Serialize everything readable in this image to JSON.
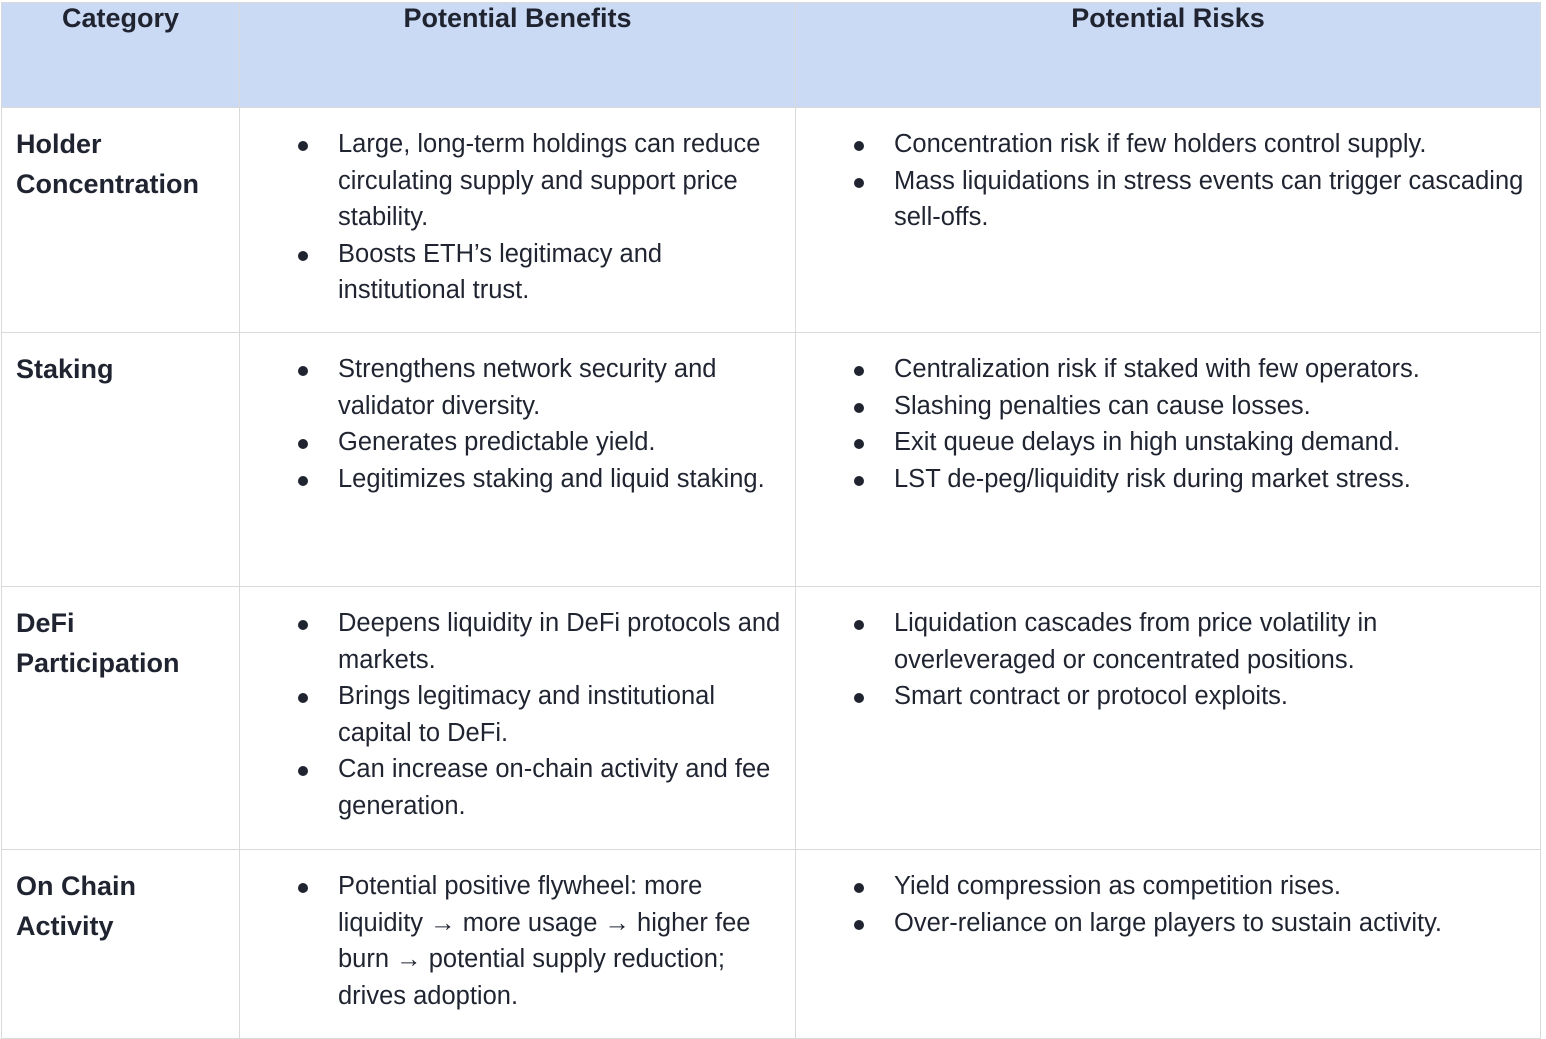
{
  "headers": {
    "category": "Category",
    "benefits": "Potential Benefits",
    "risks": "Potential Risks"
  },
  "rows": [
    {
      "category_line1": "Holder",
      "category_line2": "Concentration",
      "benefits": [
        " Large, long-term holdings can reduce circulating supply and support price stability.",
        "Boosts ETH’s legitimacy and institutional trust."
      ],
      "risks": [
        " Concentration risk if few holders control supply.",
        "Mass liquidations in stress events can trigger cascading sell-offs."
      ]
    },
    {
      "category_line1": "Staking",
      "category_line2": "",
      "benefits": [
        "Strengthens network security and validator diversity.",
        "Generates predictable yield.",
        "Legitimizes staking and liquid staking."
      ],
      "risks": [
        "Centralization risk if staked with few operators.",
        "Slashing penalties can cause losses.",
        "Exit queue delays in high unstaking demand.",
        "LST de-peg/liquidity risk during market stress."
      ]
    },
    {
      "category_line1": "DeFi",
      "category_line2": "Participation",
      "benefits": [
        "Deepens liquidity in DeFi protocols and markets.",
        "Brings legitimacy and institutional capital to DeFi.",
        "Can increase on-chain activity and fee generation."
      ],
      "risks": [
        "Liquidation cascades from price volatility in overleveraged or concentrated positions.",
        "Smart contract or protocol exploits."
      ]
    },
    {
      "category_line1": "On Chain",
      "category_line2": "Activity",
      "benefits": [
        "Potential positive flywheel: more liquidity → more usage → higher fee burn → potential supply reduction; drives adoption."
      ],
      "risks": [
        "Yield compression as competition rises.",
        "Over-reliance on large players to sustain activity."
      ]
    }
  ]
}
